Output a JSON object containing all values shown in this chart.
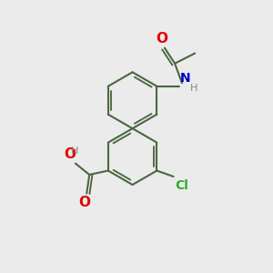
{
  "bg_color": "#ebebeb",
  "bond_color": "#4a6741",
  "bond_width": 1.5,
  "O_color": "#e00000",
  "N_color": "#0000cc",
  "Cl_color": "#33aa33",
  "H_color": "#888888",
  "fig_w": 3.0,
  "fig_h": 3.0,
  "dpi": 100,
  "xlim": [
    0,
    10
  ],
  "ylim": [
    0,
    10
  ]
}
